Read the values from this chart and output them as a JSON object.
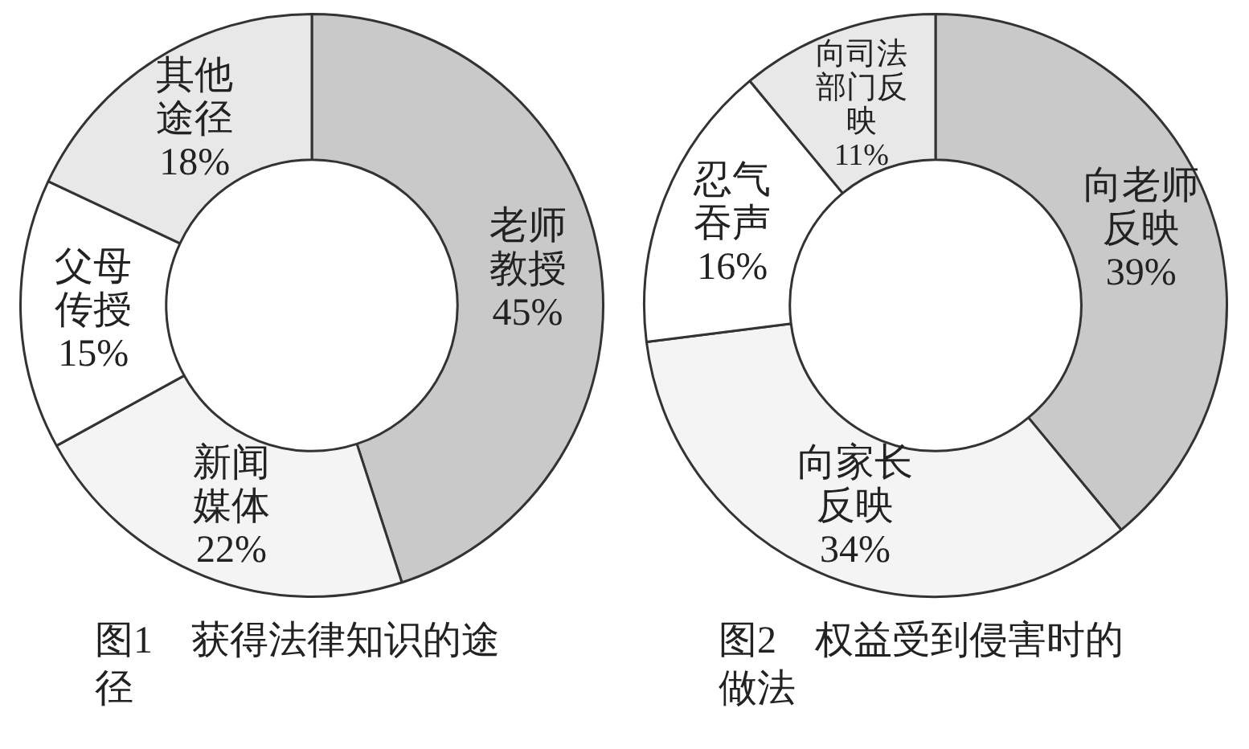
{
  "chart_data": [
    {
      "type": "donut",
      "title": "图1　获得法律知识的途径",
      "categories": [
        "老师教授",
        "新闻媒体",
        "父母传授",
        "其他途径"
      ],
      "values": [
        45,
        22,
        15,
        18
      ],
      "value_labels": [
        "45%",
        "22%",
        "15%",
        "18%"
      ],
      "colors": [
        "#c9c9c9",
        "#f4f4f4",
        "#ffffff",
        "#e8e8e8"
      ],
      "legend": false
    },
    {
      "type": "donut",
      "title": "图2　权益受到侵害时的做法",
      "categories": [
        "向老师反映",
        "向家长反映",
        "忍气吞声",
        "向司法部门反映"
      ],
      "values": [
        39,
        34,
        16,
        11
      ],
      "value_labels": [
        "39%",
        "34%",
        "16%",
        "11%"
      ],
      "colors": [
        "#c9c9c9",
        "#f4f4f4",
        "#ffffff",
        "#e8e8e8"
      ],
      "legend": false
    }
  ]
}
